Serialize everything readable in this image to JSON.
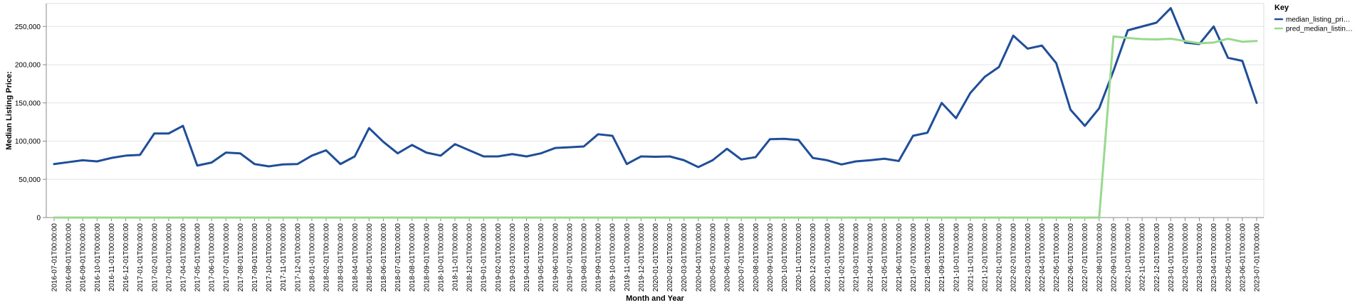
{
  "chart_data": {
    "type": "line",
    "xlabel": "Month and Year",
    "ylabel": "Median Listing Price:",
    "ylim": [
      0,
      280000
    ],
    "yticks": [
      0,
      50000,
      100000,
      150000,
      200000,
      250000
    ],
    "ytick_labels": [
      "0",
      "50,000",
      "100,000",
      "150,000",
      "200,000",
      "250,000"
    ],
    "grid": true,
    "legend": {
      "title": "Key",
      "placement": "top-right"
    },
    "x": [
      "2016-07-01T00:00:00",
      "2016-08-01T00:00:00",
      "2016-09-01T00:00:00",
      "2016-10-01T00:00:00",
      "2016-11-01T00:00:00",
      "2016-12-01T00:00:00",
      "2017-01-01T00:00:00",
      "2017-02-01T00:00:00",
      "2017-03-01T00:00:00",
      "2017-04-01T00:00:00",
      "2017-05-01T00:00:00",
      "2017-06-01T00:00:00",
      "2017-07-01T00:00:00",
      "2017-08-01T00:00:00",
      "2017-09-01T00:00:00",
      "2017-10-01T00:00:00",
      "2017-11-01T00:00:00",
      "2017-12-01T00:00:00",
      "2018-01-01T00:00:00",
      "2018-02-01T00:00:00",
      "2018-03-01T00:00:00",
      "2018-04-01T00:00:00",
      "2018-05-01T00:00:00",
      "2018-06-01T00:00:00",
      "2018-07-01T00:00:00",
      "2018-08-01T00:00:00",
      "2018-09-01T00:00:00",
      "2018-10-01T00:00:00",
      "2018-11-01T00:00:00",
      "2018-12-01T00:00:00",
      "2019-01-01T00:00:00",
      "2019-02-01T00:00:00",
      "2019-03-01T00:00:00",
      "2019-04-01T00:00:00",
      "2019-05-01T00:00:00",
      "2019-06-01T00:00:00",
      "2019-07-01T00:00:00",
      "2019-08-01T00:00:00",
      "2019-09-01T00:00:00",
      "2019-10-01T00:00:00",
      "2019-11-01T00:00:00",
      "2019-12-01T00:00:00",
      "2020-01-01T00:00:00",
      "2020-02-01T00:00:00",
      "2020-03-01T00:00:00",
      "2020-04-01T00:00:00",
      "2020-05-01T00:00:00",
      "2020-06-01T00:00:00",
      "2020-07-01T00:00:00",
      "2020-08-01T00:00:00",
      "2020-09-01T00:00:00",
      "2020-10-01T00:00:00",
      "2020-11-01T00:00:00",
      "2020-12-01T00:00:00",
      "2021-01-01T00:00:00",
      "2021-02-01T00:00:00",
      "2021-03-01T00:00:00",
      "2021-04-01T00:00:00",
      "2021-05-01T00:00:00",
      "2021-06-01T00:00:00",
      "2021-07-01T00:00:00",
      "2021-08-01T00:00:00",
      "2021-09-01T00:00:00",
      "2021-10-01T00:00:00",
      "2021-11-01T00:00:00",
      "2021-12-01T00:00:00",
      "2022-01-01T00:00:00",
      "2022-02-01T00:00:00",
      "2022-03-01T00:00:00",
      "2022-04-01T00:00:00",
      "2022-05-01T00:00:00",
      "2022-06-01T00:00:00",
      "2022-07-01T00:00:00",
      "2022-08-01T00:00:00",
      "2022-09-01T00:00:00",
      "2022-10-01T00:00:00",
      "2022-11-01T00:00:00",
      "2022-12-01T00:00:00",
      "2023-01-01T00:00:00",
      "2023-02-01T00:00:00",
      "2023-03-01T00:00:00",
      "2023-04-01T00:00:00",
      "2023-05-01T00:00:00",
      "2023-06-01T00:00:00",
      "2023-07-01T00:00:00"
    ],
    "series": [
      {
        "name": "median_listing_pri…",
        "color": "#1f4e99",
        "values": [
          70000,
          72500,
          75000,
          73500,
          78000,
          81000,
          82000,
          110000,
          110000,
          120000,
          68000,
          72000,
          85000,
          84000,
          70000,
          67000,
          69500,
          70000,
          81000,
          88000,
          70000,
          80000,
          117000,
          99000,
          84000,
          95000,
          85000,
          81000,
          96000,
          88000,
          80000,
          80000,
          83000,
          80000,
          84000,
          91000,
          92000,
          93000,
          109000,
          107000,
          70000,
          80000,
          79500,
          80000,
          75000,
          66000,
          75000,
          90000,
          76000,
          79000,
          102500,
          103000,
          101500,
          78000,
          75000,
          69500,
          73500,
          75000,
          77000,
          74000,
          107000,
          111000,
          150000,
          130000,
          163000,
          184000,
          197000,
          238000,
          221000,
          225000,
          202000,
          141000,
          120000,
          143000,
          192000,
          245000,
          250000,
          255000,
          274000,
          229000,
          227000,
          250000,
          209000,
          205000,
          150000
        ]
      },
      {
        "name": "pred_median_listin…",
        "color": "#98d98e",
        "values": [
          0,
          0,
          0,
          0,
          0,
          0,
          0,
          0,
          0,
          0,
          0,
          0,
          0,
          0,
          0,
          0,
          0,
          0,
          0,
          0,
          0,
          0,
          0,
          0,
          0,
          0,
          0,
          0,
          0,
          0,
          0,
          0,
          0,
          0,
          0,
          0,
          0,
          0,
          0,
          0,
          0,
          0,
          0,
          0,
          0,
          0,
          0,
          0,
          0,
          0,
          0,
          0,
          0,
          0,
          0,
          0,
          0,
          0,
          0,
          0,
          0,
          0,
          0,
          0,
          0,
          0,
          0,
          0,
          0,
          0,
          0,
          0,
          0,
          0,
          237000,
          235000,
          233500,
          233000,
          234000,
          231000,
          228000,
          229000,
          234000,
          230000,
          231000
        ]
      }
    ]
  }
}
